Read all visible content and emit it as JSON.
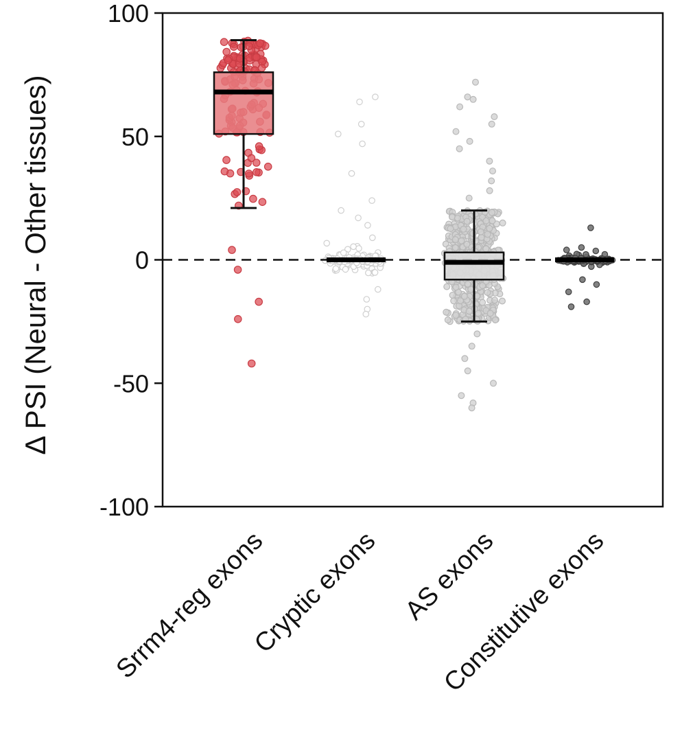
{
  "chart_data": {
    "type": "box-jitter",
    "ylabel": "Δ PSI  (Neural - Other tissues)",
    "ylim": [
      -100,
      100
    ],
    "yticks": [
      100,
      50,
      0,
      -50,
      -100
    ],
    "reference_line_y": 0,
    "categories": [
      "Srrm4-reg exons",
      "Cryptic exons",
      "AS exons",
      "Constitutive exons"
    ],
    "boxes": [
      {
        "category": "Srrm4-reg exons",
        "q1": 51,
        "median": 68,
        "q3": 76,
        "whisker_low": 21,
        "whisker_high": 89,
        "color": "#d9484f",
        "fill": "#e67a7e"
      },
      {
        "category": "Cryptic exons",
        "q1": -0.5,
        "median": 0,
        "q3": 0.5,
        "whisker_low": -0.5,
        "whisker_high": 0.5,
        "color": "#cfcfcf",
        "fill": "#ffffff"
      },
      {
        "category": "AS exons",
        "q1": -8,
        "median": -1,
        "q3": 3,
        "whisker_low": -25,
        "whisker_high": 20,
        "color": "#c4c4c4",
        "fill": "#dcdcdc"
      },
      {
        "category": "Constitutive exons",
        "q1": -0.3,
        "median": 0,
        "q3": 0.3,
        "whisker_low": -0.3,
        "whisker_high": 0.3,
        "color": "#555555",
        "fill": "#777777"
      }
    ],
    "outliers": {
      "Srrm4-reg exons": [
        4,
        -4,
        -17,
        -24,
        -42
      ],
      "Cryptic exons": [
        66,
        64,
        55,
        51,
        47,
        35,
        24,
        20,
        17,
        14,
        -12,
        -16,
        -20,
        -22
      ],
      "AS exons": [
        72,
        66,
        65,
        62,
        58,
        55,
        52,
        48,
        45,
        40,
        36,
        32,
        28,
        25,
        -30,
        -35,
        -40,
        -45,
        -50,
        -55,
        -58,
        -60
      ],
      "Constitutive exons": [
        13,
        5,
        4,
        -8,
        -10,
        -13,
        -17,
        -19
      ]
    }
  }
}
